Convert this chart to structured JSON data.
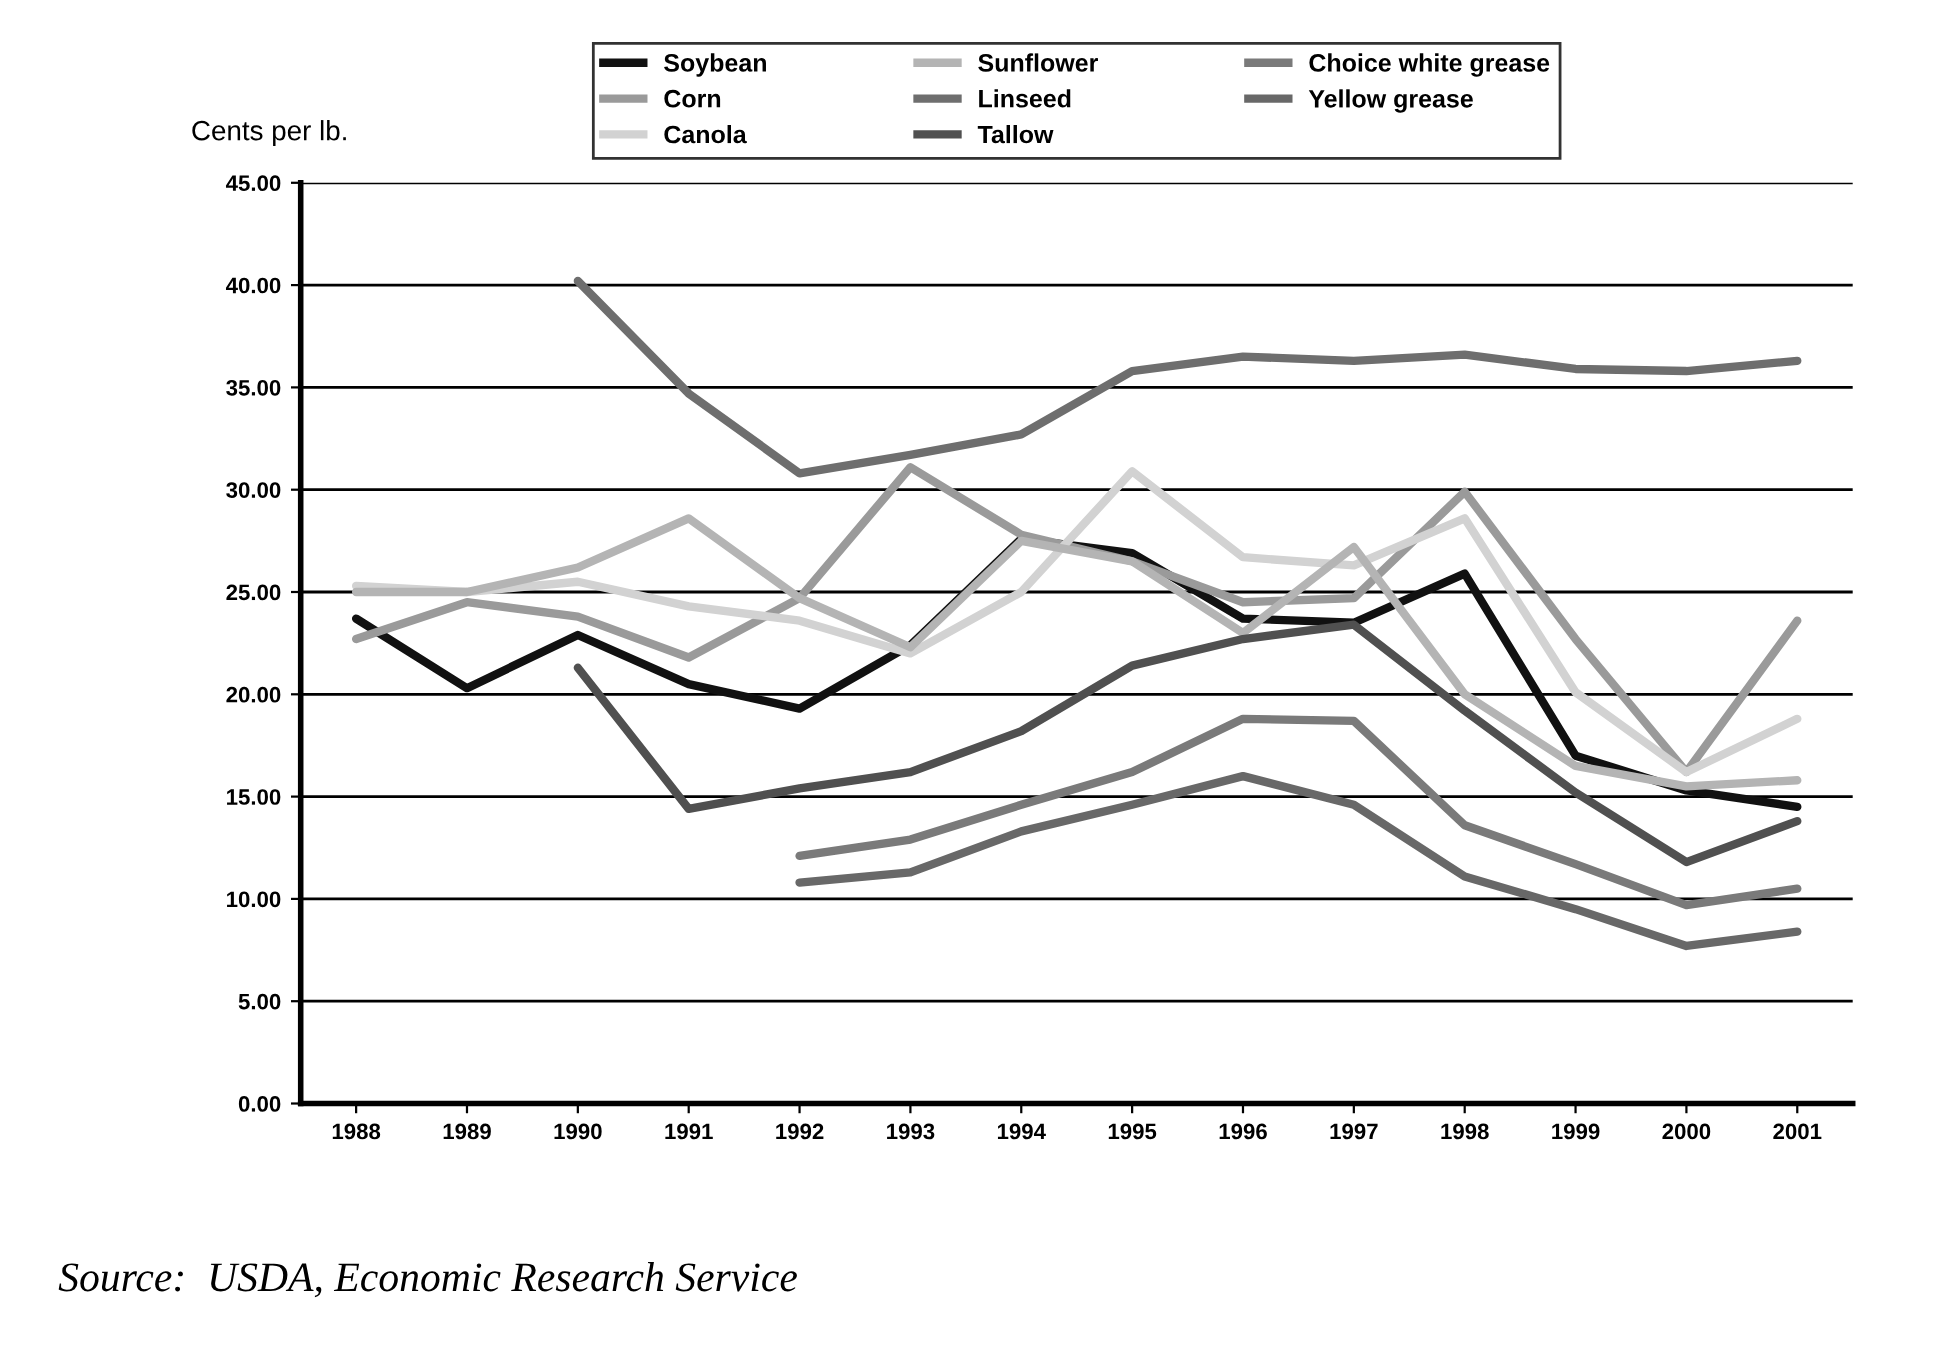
{
  "chart_data": {
    "type": "line",
    "ylabel": "Cents per lb.",
    "categories": [
      "1988",
      "1989",
      "1990",
      "1991",
      "1992",
      "1993",
      "1994",
      "1995",
      "1996",
      "1997",
      "1998",
      "1999",
      "2000",
      "2001"
    ],
    "series": [
      {
        "name": "Soybean",
        "color": "#111111",
        "values": [
          23.7,
          20.3,
          22.9,
          20.5,
          19.3,
          22.4,
          27.6,
          26.9,
          23.7,
          23.5,
          25.9,
          17.0,
          15.3,
          14.5
        ]
      },
      {
        "name": "Corn",
        "color": "#9a9a9a",
        "values": [
          22.7,
          24.5,
          23.8,
          21.8,
          24.7,
          31.1,
          27.8,
          26.5,
          24.5,
          24.7,
          29.9,
          22.7,
          16.2,
          23.6
        ]
      },
      {
        "name": "Canola",
        "color": "#d2d2d2",
        "values": [
          25.3,
          25.0,
          25.5,
          24.3,
          23.6,
          22.0,
          25.0,
          30.9,
          26.7,
          26.3,
          28.6,
          20.1,
          16.2,
          18.8
        ]
      },
      {
        "name": "Sunflower",
        "color": "#b4b4b4",
        "values": [
          25.0,
          25.0,
          26.2,
          28.6,
          24.7,
          22.3,
          27.5,
          26.5,
          23.0,
          27.2,
          20.0,
          16.5,
          15.5,
          15.8
        ]
      },
      {
        "name": "Linseed",
        "color": "#6e6e6e",
        "values": [
          null,
          null,
          40.2,
          34.7,
          30.8,
          31.7,
          32.7,
          35.8,
          36.5,
          36.3,
          36.6,
          35.9,
          35.8,
          36.3
        ]
      },
      {
        "name": "Tallow",
        "color": "#505050",
        "values": [
          null,
          null,
          21.3,
          14.4,
          15.4,
          16.2,
          18.2,
          21.4,
          22.7,
          23.4,
          19.2,
          15.2,
          11.8,
          13.8
        ]
      },
      {
        "name": "Choice white grease",
        "color": "#7a7a7a",
        "values": [
          null,
          null,
          null,
          null,
          12.1,
          12.9,
          14.6,
          16.2,
          18.8,
          18.7,
          13.6,
          11.7,
          9.7,
          10.5
        ]
      },
      {
        "name": "Yellow grease",
        "color": "#686868",
        "values": [
          null,
          null,
          null,
          null,
          10.8,
          11.3,
          13.3,
          14.6,
          16.0,
          14.6,
          11.1,
          9.5,
          7.7,
          8.4
        ]
      }
    ],
    "ylim": [
      0,
      45
    ],
    "yticks": [
      {
        "value": 0,
        "label": "0.00"
      },
      {
        "value": 5,
        "label": "5.00"
      },
      {
        "value": 10,
        "label": "10.00"
      },
      {
        "value": 15,
        "label": "15.00"
      },
      {
        "value": 20,
        "label": "20.00"
      },
      {
        "value": 25,
        "label": "25.00"
      },
      {
        "value": 30,
        "label": "30.00"
      },
      {
        "value": 35,
        "label": "35.00"
      },
      {
        "value": 40,
        "label": "40.00"
      },
      {
        "value": 45,
        "label": "45.00"
      }
    ],
    "grid": "y",
    "legend": "top",
    "marker": "none",
    "line_style": "solid",
    "annotations": [
      "Source:  USDA, Economic Research Service"
    ]
  }
}
